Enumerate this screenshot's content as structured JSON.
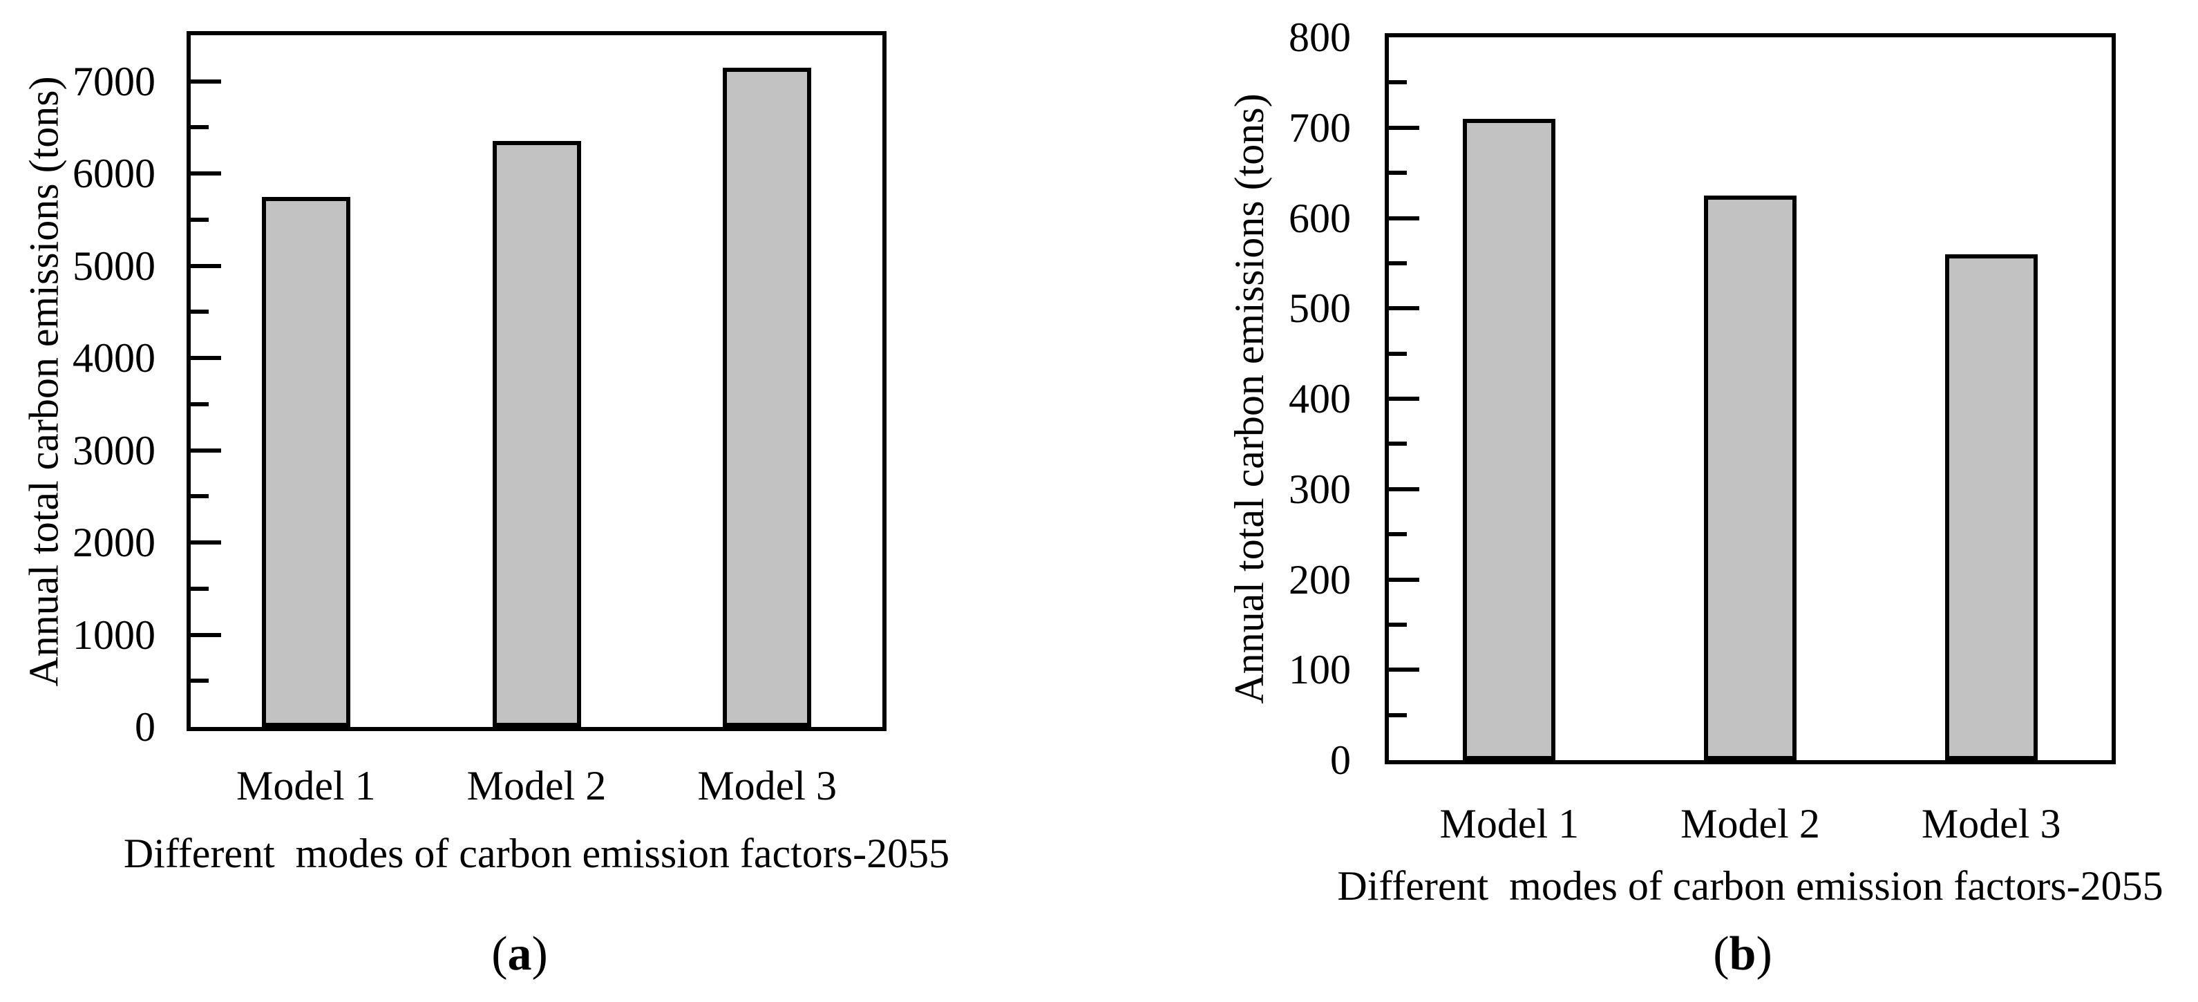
{
  "figure": {
    "bar_fill_color": "#c2c2c2",
    "bar_border_color": "#000000",
    "axis_color": "#000000",
    "background_color": "#ffffff"
  },
  "chart_data": [
    {
      "panel": "a",
      "type": "bar",
      "title": "",
      "categories": [
        "Model 1",
        "Model 2",
        "Model 3"
      ],
      "values": [
        5750,
        6350,
        7150
      ],
      "xlabel": "Different  modes of carbon emission factors-2055",
      "ylabel": "Annual total carbon emissions (tons)",
      "ylim": [
        0,
        7500
      ],
      "yticks": [
        0,
        1000,
        2000,
        3000,
        4000,
        5000,
        6000,
        7000
      ],
      "minor_tick_step": 500,
      "grid": false,
      "legend": "none",
      "caption": {
        "open": "(",
        "letter": "a",
        "close": ")"
      }
    },
    {
      "panel": "b",
      "type": "bar",
      "title": "",
      "categories": [
        "Model 1",
        "Model 2",
        "Model 3"
      ],
      "values": [
        710,
        625,
        560
      ],
      "xlabel": "Different  modes of carbon emission factors-2055",
      "ylabel": "Annual total carbon emissions (tons)",
      "ylim": [
        0,
        800
      ],
      "yticks": [
        0,
        100,
        200,
        300,
        400,
        500,
        600,
        700,
        800
      ],
      "minor_tick_step": 50,
      "grid": false,
      "legend": "none",
      "caption": {
        "open": "(",
        "letter": "b",
        "close": ")"
      }
    }
  ]
}
